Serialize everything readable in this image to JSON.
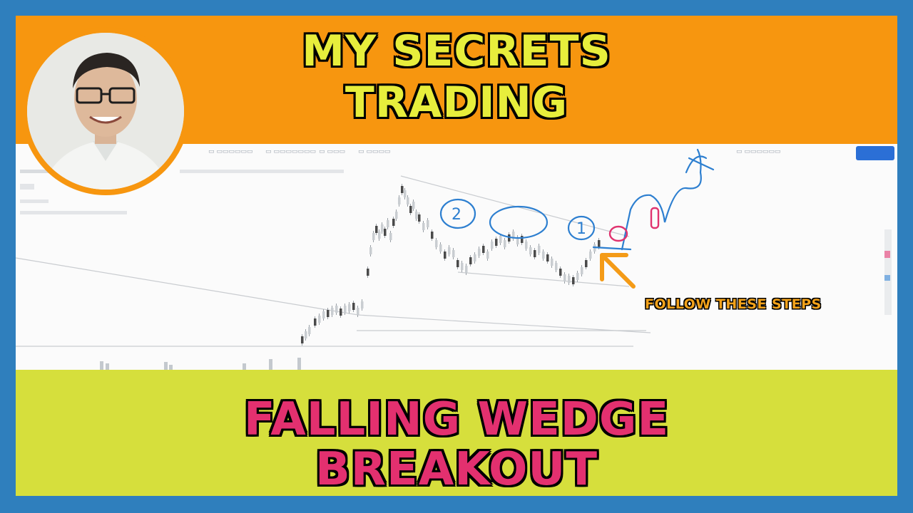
{
  "thumbnail": {
    "top_title_line1": "MY SECRETS",
    "top_title_line2": "TRADING",
    "bottom_title_line1": "FALLING WEDGE",
    "bottom_title_line2": "BREAKOUT",
    "annotation_text": "FOLLOW THESE STEPS",
    "step_labels": [
      "2",
      "1",
      "1"
    ]
  },
  "colors": {
    "frame_border": "#2f7fbd",
    "top_banner": "#f7960f",
    "bottom_banner": "#d6df3c",
    "top_title_text": "#e7ee3c",
    "bottom_title_text": "#e3306f",
    "annotation_text": "#f2a21b",
    "blue_marker": "#2d7fd0",
    "pink_marker": "#e0336f",
    "orange_arrow": "#f49b17"
  },
  "icons": [
    "presenter-avatar",
    "orange-arrow-icon"
  ]
}
